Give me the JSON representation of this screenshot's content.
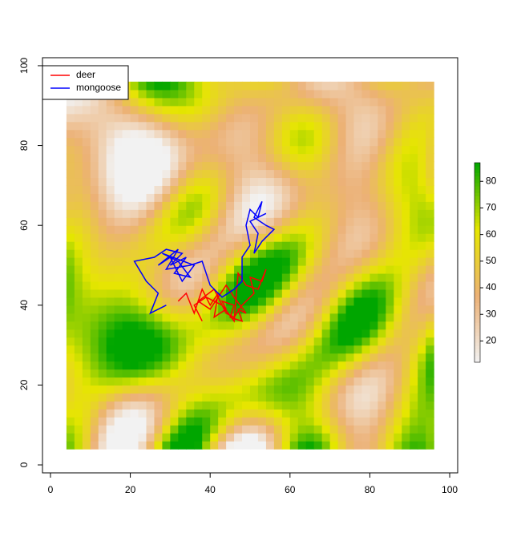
{
  "chart_data": {
    "type": "line",
    "xlim": [
      -2,
      102
    ],
    "ylim": [
      -2,
      102
    ],
    "xticks": [
      0,
      20,
      40,
      60,
      80,
      100
    ],
    "yticks": [
      0,
      20,
      40,
      60,
      80,
      100
    ],
    "raster_extent": [
      4,
      96
    ],
    "zlim": [
      12,
      87
    ],
    "zticks": [
      20,
      30,
      40,
      50,
      60,
      70,
      80
    ],
    "palette": [
      "#F2F2F2",
      "#ECB176",
      "#E6E600",
      "#00A600"
    ],
    "legend": "topleft",
    "series": [
      {
        "name": "deer",
        "color": "#ff0000",
        "x": [
          32,
          34,
          36,
          38,
          40,
          42,
          41,
          44,
          43,
          46,
          45,
          48,
          47,
          49,
          46,
          44,
          40,
          37,
          41,
          44,
          46,
          48,
          51,
          50,
          53,
          54,
          52,
          49,
          47,
          46,
          43,
          39,
          36,
          38
        ],
        "values": [
          41,
          43,
          38,
          44,
          40,
          43,
          37,
          39,
          41,
          40,
          37,
          36,
          39,
          38,
          42,
          45,
          39,
          41,
          44,
          38,
          37,
          40,
          43,
          47,
          46,
          49,
          44,
          45,
          48,
          36,
          40,
          42,
          40,
          36
        ]
      },
      {
        "name": "mongoose",
        "color": "#0000ff",
        "x": [
          29,
          25,
          27,
          24,
          21,
          26,
          29,
          33,
          30,
          34,
          31,
          35,
          32,
          28,
          36,
          33,
          30,
          27,
          32,
          29,
          35,
          38,
          40,
          43,
          46,
          48,
          48,
          50,
          49,
          50,
          52,
          53,
          51,
          54,
          56,
          53,
          51,
          52,
          50,
          54
        ],
        "values": [
          40,
          38,
          43,
          46,
          51,
          52,
          54,
          53,
          50,
          52,
          48,
          47,
          51,
          53,
          50,
          46,
          52,
          50,
          54,
          49,
          50,
          51,
          45,
          42,
          44,
          46,
          52,
          55,
          60,
          64,
          62,
          66,
          62,
          60,
          59,
          56,
          53,
          58,
          61,
          63
        ]
      }
    ]
  }
}
